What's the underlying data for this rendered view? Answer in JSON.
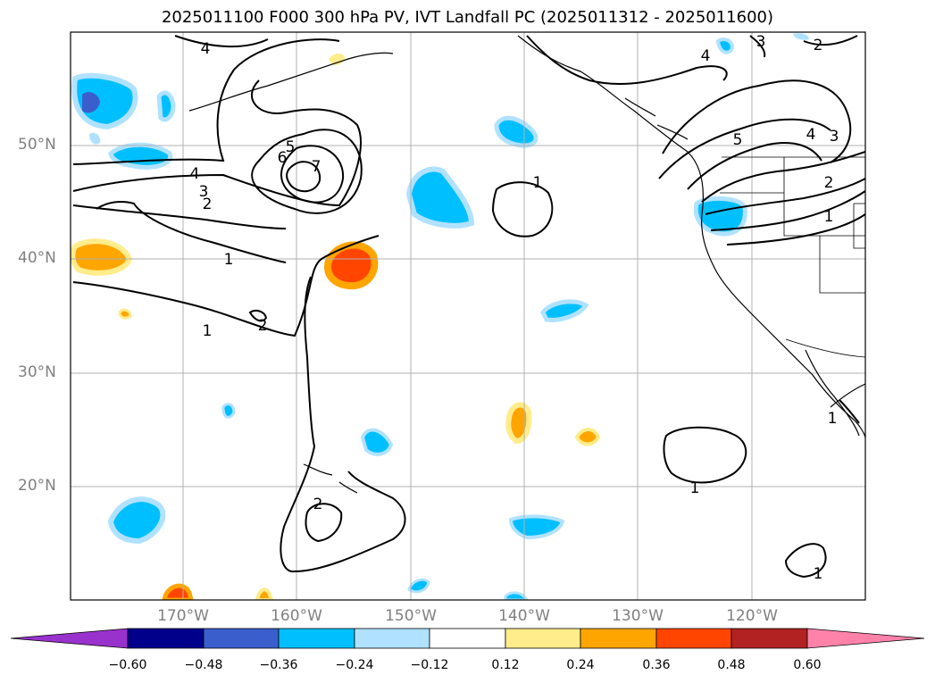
{
  "title": "2025011100 F000 300 hPa PV, IVT Landfall PC (2025011312 - 2025011600)",
  "lat_labels": [
    "50°N",
    "40°N",
    "30°N",
    "20°N"
  ],
  "lon_labels": [
    "170°W",
    "160°W",
    "150°W",
    "140°W",
    "130°W",
    "120°W"
  ],
  "contour_labels": [
    "4",
    "5",
    "6",
    "7",
    "4",
    "3",
    "2",
    "1",
    "1",
    "2",
    "2",
    "1",
    "4",
    "3",
    "5",
    "4",
    "3",
    "2",
    "1",
    "2",
    "1",
    "1",
    "1"
  ],
  "colorbar": {
    "ticks": [
      "−0.60",
      "−0.48",
      "−0.36",
      "−0.24",
      "−0.12",
      "0.12",
      "0.24",
      "0.36",
      "0.48",
      "0.60"
    ],
    "colors": [
      "#9932cc",
      "#00008b",
      "#3a5fcd",
      "#00bfff",
      "#b0e2ff",
      "#ffffff",
      "#ffec8b",
      "#ffa500",
      "#ff4500",
      "#b22222",
      "#ff82ab"
    ]
  }
}
